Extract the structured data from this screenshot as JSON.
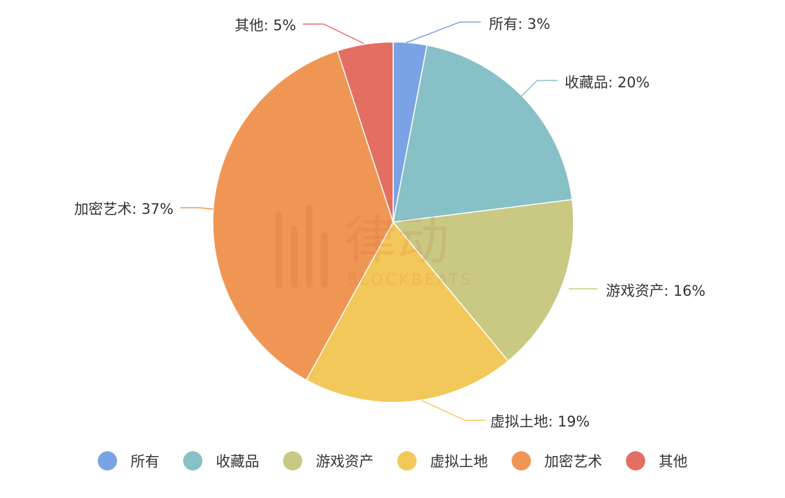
{
  "chart_data": {
    "type": "pie",
    "slices": [
      {
        "name": "所有",
        "value": 3,
        "label": "所有: 3%",
        "color": "#7aa3e5"
      },
      {
        "name": "收藏品",
        "value": 20,
        "label": "收藏品: 20%",
        "color": "#87c1c7"
      },
      {
        "name": "游戏资产",
        "value": 16,
        "label": "游戏资产: 16%",
        "color": "#c9c983"
      },
      {
        "name": "虚拟土地",
        "value": 19,
        "label": "虚拟土地: 19%",
        "color": "#f3c85a"
      },
      {
        "name": "加密艺术",
        "value": 37,
        "label": "加密艺术: 37%",
        "color": "#f09654"
      },
      {
        "name": "其他",
        "value": 5,
        "label": "其他: 5%",
        "color": "#e36e62"
      }
    ],
    "legend_position": "bottom",
    "watermark": {
      "text": "律动",
      "subtext": "BLOCKBEATS"
    }
  }
}
